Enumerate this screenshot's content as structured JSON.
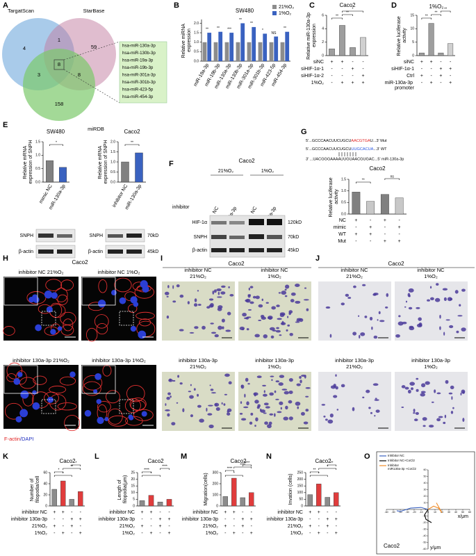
{
  "figure": {
    "letters": {
      "A": "A",
      "F": "F",
      "H": "H",
      "I": "I",
      "J": "J"
    },
    "venn": {
      "sets": [
        "TargatScan",
        "StarBase",
        "miRDB"
      ],
      "counts": [
        4,
        1,
        59,
        3,
        8,
        8,
        158
      ],
      "mirnas": [
        "hsa-miR-130a-3p",
        "hsa-miR-130b-3p",
        "hsa-miR-19a-3p",
        "hsa-miR-19b-3p",
        "hsa-miR-301a-3p",
        "hsa-miR-301b-3p",
        "hsa-miR-423-5p",
        "hsa-miR-454-3p"
      ]
    },
    "e_blots": {
      "left": [
        "SNPH",
        "β-actin"
      ],
      "right": [
        "SNPH",
        "β-actin"
      ],
      "sizes": [
        "70kD",
        "45kD"
      ]
    },
    "f_blot": {
      "title": "Caco2",
      "conditions": [
        "21%O₂",
        "1%O₂"
      ],
      "row_label": "inhibitor",
      "lanes": [
        "NC",
        "miR-130a-3p",
        "NC",
        "miR-130a-3p"
      ],
      "proteins": [
        "HIF-1α",
        "SNPH",
        "β-actin"
      ],
      "sizes": [
        "120kD",
        "70kD",
        "45kD"
      ]
    },
    "g_sequences": {
      "mut": [
        "5'...GCCCAACUUCUGCU",
        "AACGTGA",
        "U...3' Mut"
      ],
      "wt": [
        "5'...GCCCAACUUCUGCU",
        "UUGCACUA",
        "...3' WT"
      ],
      "mirna": "3' ...UACGGGAAAAUUGUAACGUGAC...5' miR-130a-3p"
    },
    "h_images": {
      "title": "Caco2",
      "labels": [
        "inhibitor NC 21%O₂",
        "inhibitor NC 1%O₂",
        "inhibitor 130a-3p 21%O₂",
        "inhibitor 130a-3p 1%O₂"
      ],
      "stain": [
        "F-actin",
        "/DAPI"
      ]
    },
    "i_images": {
      "title": "Caco2",
      "labels": [
        [
          "inhibitor NC",
          "21%O₂"
        ],
        [
          "inhibitor NC",
          "1%O₂"
        ],
        [
          "inhibitor 130a-3p",
          "21%O₂"
        ],
        [
          "inhibitor 130a-3p",
          "1%O₂"
        ]
      ]
    },
    "j_images": {
      "title": "Caco2",
      "labels": [
        [
          "inhibitor NC",
          "21%O₂"
        ],
        [
          "inhibitor NC",
          "1%O₂"
        ],
        [
          "inhibitor 130a-3p",
          "21%O₂"
        ],
        [
          "inhibitor 130a-3p",
          "1%O₂"
        ]
      ]
    }
  },
  "chart_data": [
    {
      "type": "bar",
      "letter": "B",
      "title": "SW480",
      "ylabel": "Relative miRNA expression",
      "categories": [
        "miR-19a-3p",
        "miR-19b-3p",
        "miR-130a-3p",
        "miR-130b-3p",
        "miR-301a-3p",
        "miR-301b-3p",
        "miR-423-5p",
        "miR-454-3p"
      ],
      "series": [
        {
          "name": "21%O₂",
          "color": "#8c8c8c",
          "values": [
            1,
            1,
            1,
            1,
            1,
            1,
            1,
            1
          ]
        },
        {
          "name": "1%O₂",
          "color": "#3a62c0",
          "values": [
            1.5,
            1.55,
            1.5,
            2.0,
            1.8,
            1.45,
            1.3,
            1.55
          ]
        }
      ],
      "significance": [
        "**",
        "**",
        "***",
        "**",
        "**",
        "*",
        "NS",
        "**"
      ],
      "ylim": [
        0,
        2.2
      ],
      "yticks": [
        {
          "value": 0,
          "label": "0.0"
        },
        0.5,
        {
          "value": 1,
          "label": "1.0"
        },
        1.5,
        {
          "value": 2,
          "label": "2.0"
        }
      ]
    },
    {
      "type": "bar",
      "letter": "C",
      "title": "Caco2",
      "ylabel": "Relative miR-130a-3p expression",
      "values": [
        1,
        4.5,
        1.2,
        2.7
      ],
      "colors": [
        "#9e9e9e",
        "#9e9e9e",
        "#9e9e9e",
        "#d0d0d0"
      ],
      "significance": [
        "**",
        "**",
        "*"
      ],
      "ylim": [
        0,
        6
      ],
      "yticks": [
        0,
        2,
        4,
        6
      ],
      "conditions": [
        {
          "label": "siNC",
          "signs": [
            "+",
            "+",
            "-",
            "-"
          ]
        },
        {
          "label": "siHIF-1α-1",
          "signs": [
            "-",
            "-",
            "+",
            "-"
          ]
        },
        {
          "label": "siHIF-1α-2",
          "signs": [
            "-",
            "-",
            "-",
            "+"
          ]
        },
        {
          "label": "1%O₂",
          "signs": [
            "-",
            "+",
            "+",
            "+"
          ]
        }
      ]
    },
    {
      "type": "bar",
      "letter": "D",
      "title": "1%O₂",
      "ylabel": "Relative luciferase activity",
      "values": [
        1,
        12,
        1,
        4.5
      ],
      "colors": [
        "#9e9e9e",
        "#9e9e9e",
        "#9e9e9e",
        "#d0d0d0"
      ],
      "significance": [
        "**",
        "**",
        "**"
      ],
      "ylim": [
        0,
        15
      ],
      "yticks": [
        0,
        5,
        10,
        15
      ],
      "conditions": [
        {
          "label": "siNC",
          "signs": [
            "+",
            "+",
            "-",
            "-"
          ]
        },
        {
          "label": "siHIF-1α-1",
          "signs": [
            "-",
            "-",
            "+",
            "+"
          ]
        },
        {
          "label": "Ctrl",
          "signs": [
            "+",
            "-",
            "+",
            "-"
          ]
        },
        {
          "label": "miR-130a-3p promoter",
          "signs": [
            "-",
            "+",
            "-",
            "+"
          ]
        }
      ]
    },
    {
      "type": "bar",
      "letter": "E",
      "title": "SW480",
      "ylabel": "Relative mRNA expression of SNPH",
      "categories": [
        "mimic NC",
        "miR-130a-3p"
      ],
      "values": [
        0.8,
        0.55
      ],
      "colors": [
        "#808080",
        "#3a62c0"
      ],
      "significance": [
        "*"
      ],
      "ylim": [
        0,
        1.5
      ],
      "yticks": [
        {
          "value": 0,
          "label": "0.0"
        },
        0.5,
        {
          "value": 1,
          "label": "1.0"
        },
        1.5
      ]
    },
    {
      "type": "bar",
      "title": "Caco2",
      "ylabel": "Relative mRNA expression of SNPH",
      "categories": [
        "inhibitor NC",
        "miR-130a-3p"
      ],
      "values": [
        1.0,
        1.45
      ],
      "colors": [
        "#808080",
        "#3a62c0"
      ],
      "significance": [
        "**"
      ],
      "ylim": [
        0,
        2
      ],
      "yticks": [
        {
          "value": 0,
          "label": "0.0"
        },
        0.5,
        {
          "value": 1,
          "label": "1.0"
        },
        1.5,
        {
          "value": 2,
          "label": "2.0"
        }
      ]
    },
    {
      "type": "bar",
      "letter": "G",
      "title": "Caco2",
      "ylabel": "Relative luciferase activity",
      "values": [
        0.95,
        0.55,
        0.85,
        0.7
      ],
      "colors": [
        "#808080",
        "#c8c8c8",
        "#808080",
        "#c8c8c8"
      ],
      "significance": [
        "**",
        "ns"
      ],
      "ylim": [
        0,
        1.5
      ],
      "yticks": [
        {
          "value": 0,
          "label": "0.0"
        },
        0.5,
        {
          "value": 1,
          "label": "1.0"
        },
        1.5
      ],
      "conditions": [
        {
          "label": "NC",
          "signs": [
            "+",
            "-",
            "+",
            "-"
          ]
        },
        {
          "label": "mimic",
          "signs": [
            "-",
            "+",
            "-",
            "+"
          ]
        },
        {
          "label": "WT",
          "signs": [
            "+",
            "+",
            "-",
            "-"
          ]
        },
        {
          "label": "Mut",
          "signs": [
            "-",
            "-",
            "+",
            "+"
          ]
        }
      ]
    },
    {
      "type": "bar",
      "letter": "K",
      "title": "Caco2",
      "ylabel": "Number of filopodia/cell",
      "values": [
        30,
        45,
        12,
        26
      ],
      "colors": [
        "#8c8c8c",
        "#e03c3c",
        "#8c8c8c",
        "#e03c3c"
      ],
      "significance": [
        "*",
        "*",
        "**",
        "*"
      ],
      "ylim": [
        0,
        60
      ],
      "yticks": [
        0,
        20,
        40,
        60
      ],
      "conditions": [
        {
          "label": "inhibitor NC",
          "signs": [
            "+",
            "+",
            "-",
            "-"
          ]
        },
        {
          "label": "inhibitor 130a-3p",
          "signs": [
            "-",
            "-",
            "+",
            "+"
          ]
        },
        {
          "label": "21%O₂",
          "signs": [
            "+",
            "-",
            "+",
            "-"
          ]
        },
        {
          "label": "1%O₂",
          "signs": [
            "-",
            "+",
            "-",
            "+"
          ]
        }
      ]
    },
    {
      "type": "bar",
      "letter": "L",
      "title": "Caco2",
      "ylabel": "Length of filopodia(μm)",
      "values": [
        4,
        8,
        3,
        5
      ],
      "colors": [
        "#8c8c8c",
        "#e03c3c",
        "#8c8c8c",
        "#e03c3c"
      ],
      "significance": [
        "*",
        "****",
        "****"
      ],
      "ylim": [
        0,
        25
      ],
      "yticks": [
        0,
        5,
        10,
        15,
        20,
        25
      ],
      "conditions": [
        {
          "label": "inhibitor NC",
          "signs": [
            "+",
            "+",
            "-",
            "-"
          ]
        },
        {
          "label": "inhibitor 130a-3p",
          "signs": [
            "-",
            "-",
            "+",
            "+"
          ]
        },
        {
          "label": "21%O₂",
          "signs": [
            "+",
            "-",
            "+",
            "-"
          ]
        },
        {
          "label": "1%O₂",
          "signs": [
            "-",
            "+",
            "-",
            "+"
          ]
        }
      ]
    },
    {
      "type": "bar",
      "letter": "M",
      "title": "Caco2",
      "ylabel": "Migration(cells)",
      "values": [
        85,
        250,
        75,
        120
      ],
      "colors": [
        "#8c8c8c",
        "#e03c3c",
        "#8c8c8c",
        "#e03c3c"
      ],
      "significance": [
        "*",
        "****",
        "****",
        "****"
      ],
      "ylim": [
        0,
        300
      ],
      "yticks": [
        0,
        100,
        200,
        300
      ],
      "conditions": [
        {
          "label": "inhibitor NC",
          "signs": [
            "+",
            "+",
            "-",
            "-"
          ]
        },
        {
          "label": "inhibitor 130a-3p",
          "signs": [
            "-",
            "-",
            "+",
            "+"
          ]
        },
        {
          "label": "21%O₂",
          "signs": [
            "+",
            "-",
            "+",
            "-"
          ]
        },
        {
          "label": "1%O₂",
          "signs": [
            "-",
            "+",
            "-",
            "+"
          ]
        }
      ]
    },
    {
      "type": "bar",
      "letter": "N",
      "title": "Caco2",
      "ylabel": "Invation (cells)",
      "values": [
        85,
        165,
        65,
        100
      ],
      "colors": [
        "#8c8c8c",
        "#e03c3c",
        "#8c8c8c",
        "#e03c3c"
      ],
      "significance": [
        "*",
        "**",
        "*",
        "**"
      ],
      "ylim": [
        0,
        250
      ],
      "yticks": [
        0,
        50,
        100,
        150,
        200,
        250
      ],
      "conditions": [
        {
          "label": "inhibitor NC",
          "signs": [
            "+",
            "+",
            "-",
            "-"
          ]
        },
        {
          "label": "inhibitor 130a-3p",
          "signs": [
            "-",
            "-",
            "+",
            "+"
          ]
        },
        {
          "label": "21%O₂",
          "signs": [
            "+",
            "-",
            "+",
            "-"
          ]
        },
        {
          "label": "1%O₂",
          "signs": [
            "-",
            "+",
            "-",
            "+"
          ]
        }
      ]
    },
    {
      "type": "trajectory",
      "letter": "O",
      "title": "Caco2",
      "xlabel": "x/μm",
      "ylabel": "y/μm",
      "xlim": [
        -60,
        60
      ],
      "ylim": [
        -60,
        60
      ],
      "xticks": [
        -60,
        -50,
        -40,
        -30,
        -20,
        -10,
        0,
        10,
        20,
        30,
        40,
        50,
        60
      ],
      "yticks": [
        -60,
        -50,
        -40,
        -30,
        -20,
        -10,
        0,
        10,
        20,
        30,
        40,
        50,
        60
      ],
      "series": [
        {
          "name": "Inhibitor NC",
          "color": "#3a62c0",
          "x": [
            0,
            -10,
            -25,
            -40,
            -45
          ],
          "y": [
            0,
            3,
            2,
            -3,
            -2
          ]
        },
        {
          "name": "Inhibitor NC+CoCl2",
          "color": "#000000",
          "x": [
            0,
            -5,
            -3,
            5
          ],
          "y": [
            0,
            -8,
            -15,
            -20
          ]
        },
        {
          "name": "Inhibitor miR130a-3p +CoCl2",
          "color": "#f08c28",
          "x": [
            0,
            8,
            15,
            20,
            12
          ],
          "y": [
            0,
            5,
            2,
            -5,
            10
          ]
        }
      ]
    }
  ]
}
